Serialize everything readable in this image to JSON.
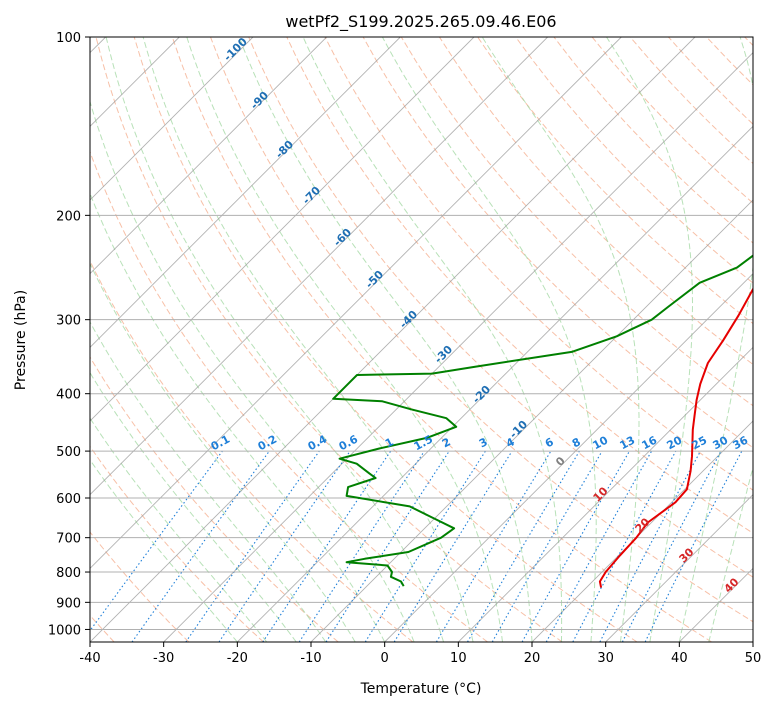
{
  "chart_data": {
    "type": "line",
    "title": "wetPf2_S199.2025.265.09.46.E06",
    "xlabel": "Temperature (°C)",
    "ylabel": "Pressure (hPa)",
    "xlim": [
      -40,
      50
    ],
    "ylim": [
      1050,
      100
    ],
    "x_ticks": [
      -40,
      -30,
      -20,
      -10,
      0,
      10,
      20,
      30,
      40,
      50
    ],
    "y_ticks": [
      100,
      200,
      300,
      400,
      500,
      600,
      700,
      800,
      900,
      1000
    ],
    "colors": {
      "temperature": "#e60000",
      "dewpoint": "#008000",
      "isotherm": "#999999",
      "dry_adiabat": "#f4a582",
      "moist_adiabat": "#a6d9a6",
      "mixing_ratio": "#1e7fd8",
      "dry_adiabat_label": "#d62728",
      "temp_label": "#1f6fb4"
    },
    "series": [
      {
        "name": "Temperature",
        "points": [
          [
            1.5,
            100
          ],
          [
            3,
            115
          ],
          [
            5,
            140
          ],
          [
            6,
            160
          ],
          [
            6.2,
            180
          ],
          [
            4,
            195
          ],
          [
            1.5,
            205
          ],
          [
            0.2,
            220
          ],
          [
            0.8,
            245
          ],
          [
            2.3,
            270
          ],
          [
            3.7,
            295
          ],
          [
            5,
            325
          ],
          [
            6,
            355
          ],
          [
            7.8,
            385
          ],
          [
            9.5,
            410
          ],
          [
            11.3,
            435
          ],
          [
            13,
            460
          ],
          [
            14.8,
            485
          ],
          [
            16.5,
            510
          ],
          [
            18.3,
            540
          ],
          [
            20.3,
            580
          ],
          [
            20.5,
            610
          ],
          [
            19.5,
            660
          ],
          [
            20,
            700
          ],
          [
            20.2,
            750
          ],
          [
            20.5,
            800
          ],
          [
            21,
            830
          ],
          [
            22,
            850
          ]
        ]
      },
      {
        "name": "Dewpoint",
        "points": [
          [
            0.8,
            100
          ],
          [
            0,
            105
          ],
          [
            -1,
            115
          ],
          [
            -3,
            135
          ],
          [
            -5,
            155
          ],
          [
            -7.5,
            170
          ],
          [
            -8.5,
            180
          ],
          [
            -8,
            195
          ],
          [
            -6,
            205
          ],
          [
            -3,
            215
          ],
          [
            -2,
            225
          ],
          [
            -3,
            245
          ],
          [
            -6,
            260
          ],
          [
            -7,
            285
          ],
          [
            -7.5,
            300
          ],
          [
            -10,
            320
          ],
          [
            -14,
            340
          ],
          [
            -25,
            360
          ],
          [
            -30,
            370
          ],
          [
            -40,
            372
          ],
          [
            -40,
            408
          ],
          [
            -33,
            412
          ],
          [
            -28,
            425
          ],
          [
            -22,
            440
          ],
          [
            -19.5,
            455
          ],
          [
            -22,
            475
          ],
          [
            -27,
            495
          ],
          [
            -31,
            515
          ],
          [
            -28,
            525
          ],
          [
            -25,
            545
          ],
          [
            -23.5,
            555
          ],
          [
            -26,
            575
          ],
          [
            -25,
            595
          ],
          [
            -15,
            620
          ],
          [
            -10,
            650
          ],
          [
            -6,
            675
          ],
          [
            -6.5,
            700
          ],
          [
            -9,
            740
          ],
          [
            -14,
            760
          ],
          [
            -16,
            770
          ],
          [
            -10,
            780
          ],
          [
            -8.5,
            800
          ],
          [
            -8,
            815
          ],
          [
            -6,
            830
          ],
          [
            -5,
            845
          ]
        ]
      }
    ],
    "isotherm_labels": [
      "-100",
      "-90",
      "-80",
      "-70",
      "-60",
      "-50",
      "-40",
      "-30",
      "-20",
      "-10",
      "0",
      "10",
      "20",
      "30",
      "40"
    ],
    "dry_adiabat_labels": [
      "10",
      "20",
      "30",
      "40"
    ],
    "mixing_ratio_labels": [
      "0.1",
      "0.2",
      "0.4",
      "0.6",
      "1",
      "1.5",
      "2",
      "3",
      "4",
      "6",
      "8",
      "10",
      "13",
      "16",
      "20",
      "25",
      "30",
      "36"
    ]
  }
}
